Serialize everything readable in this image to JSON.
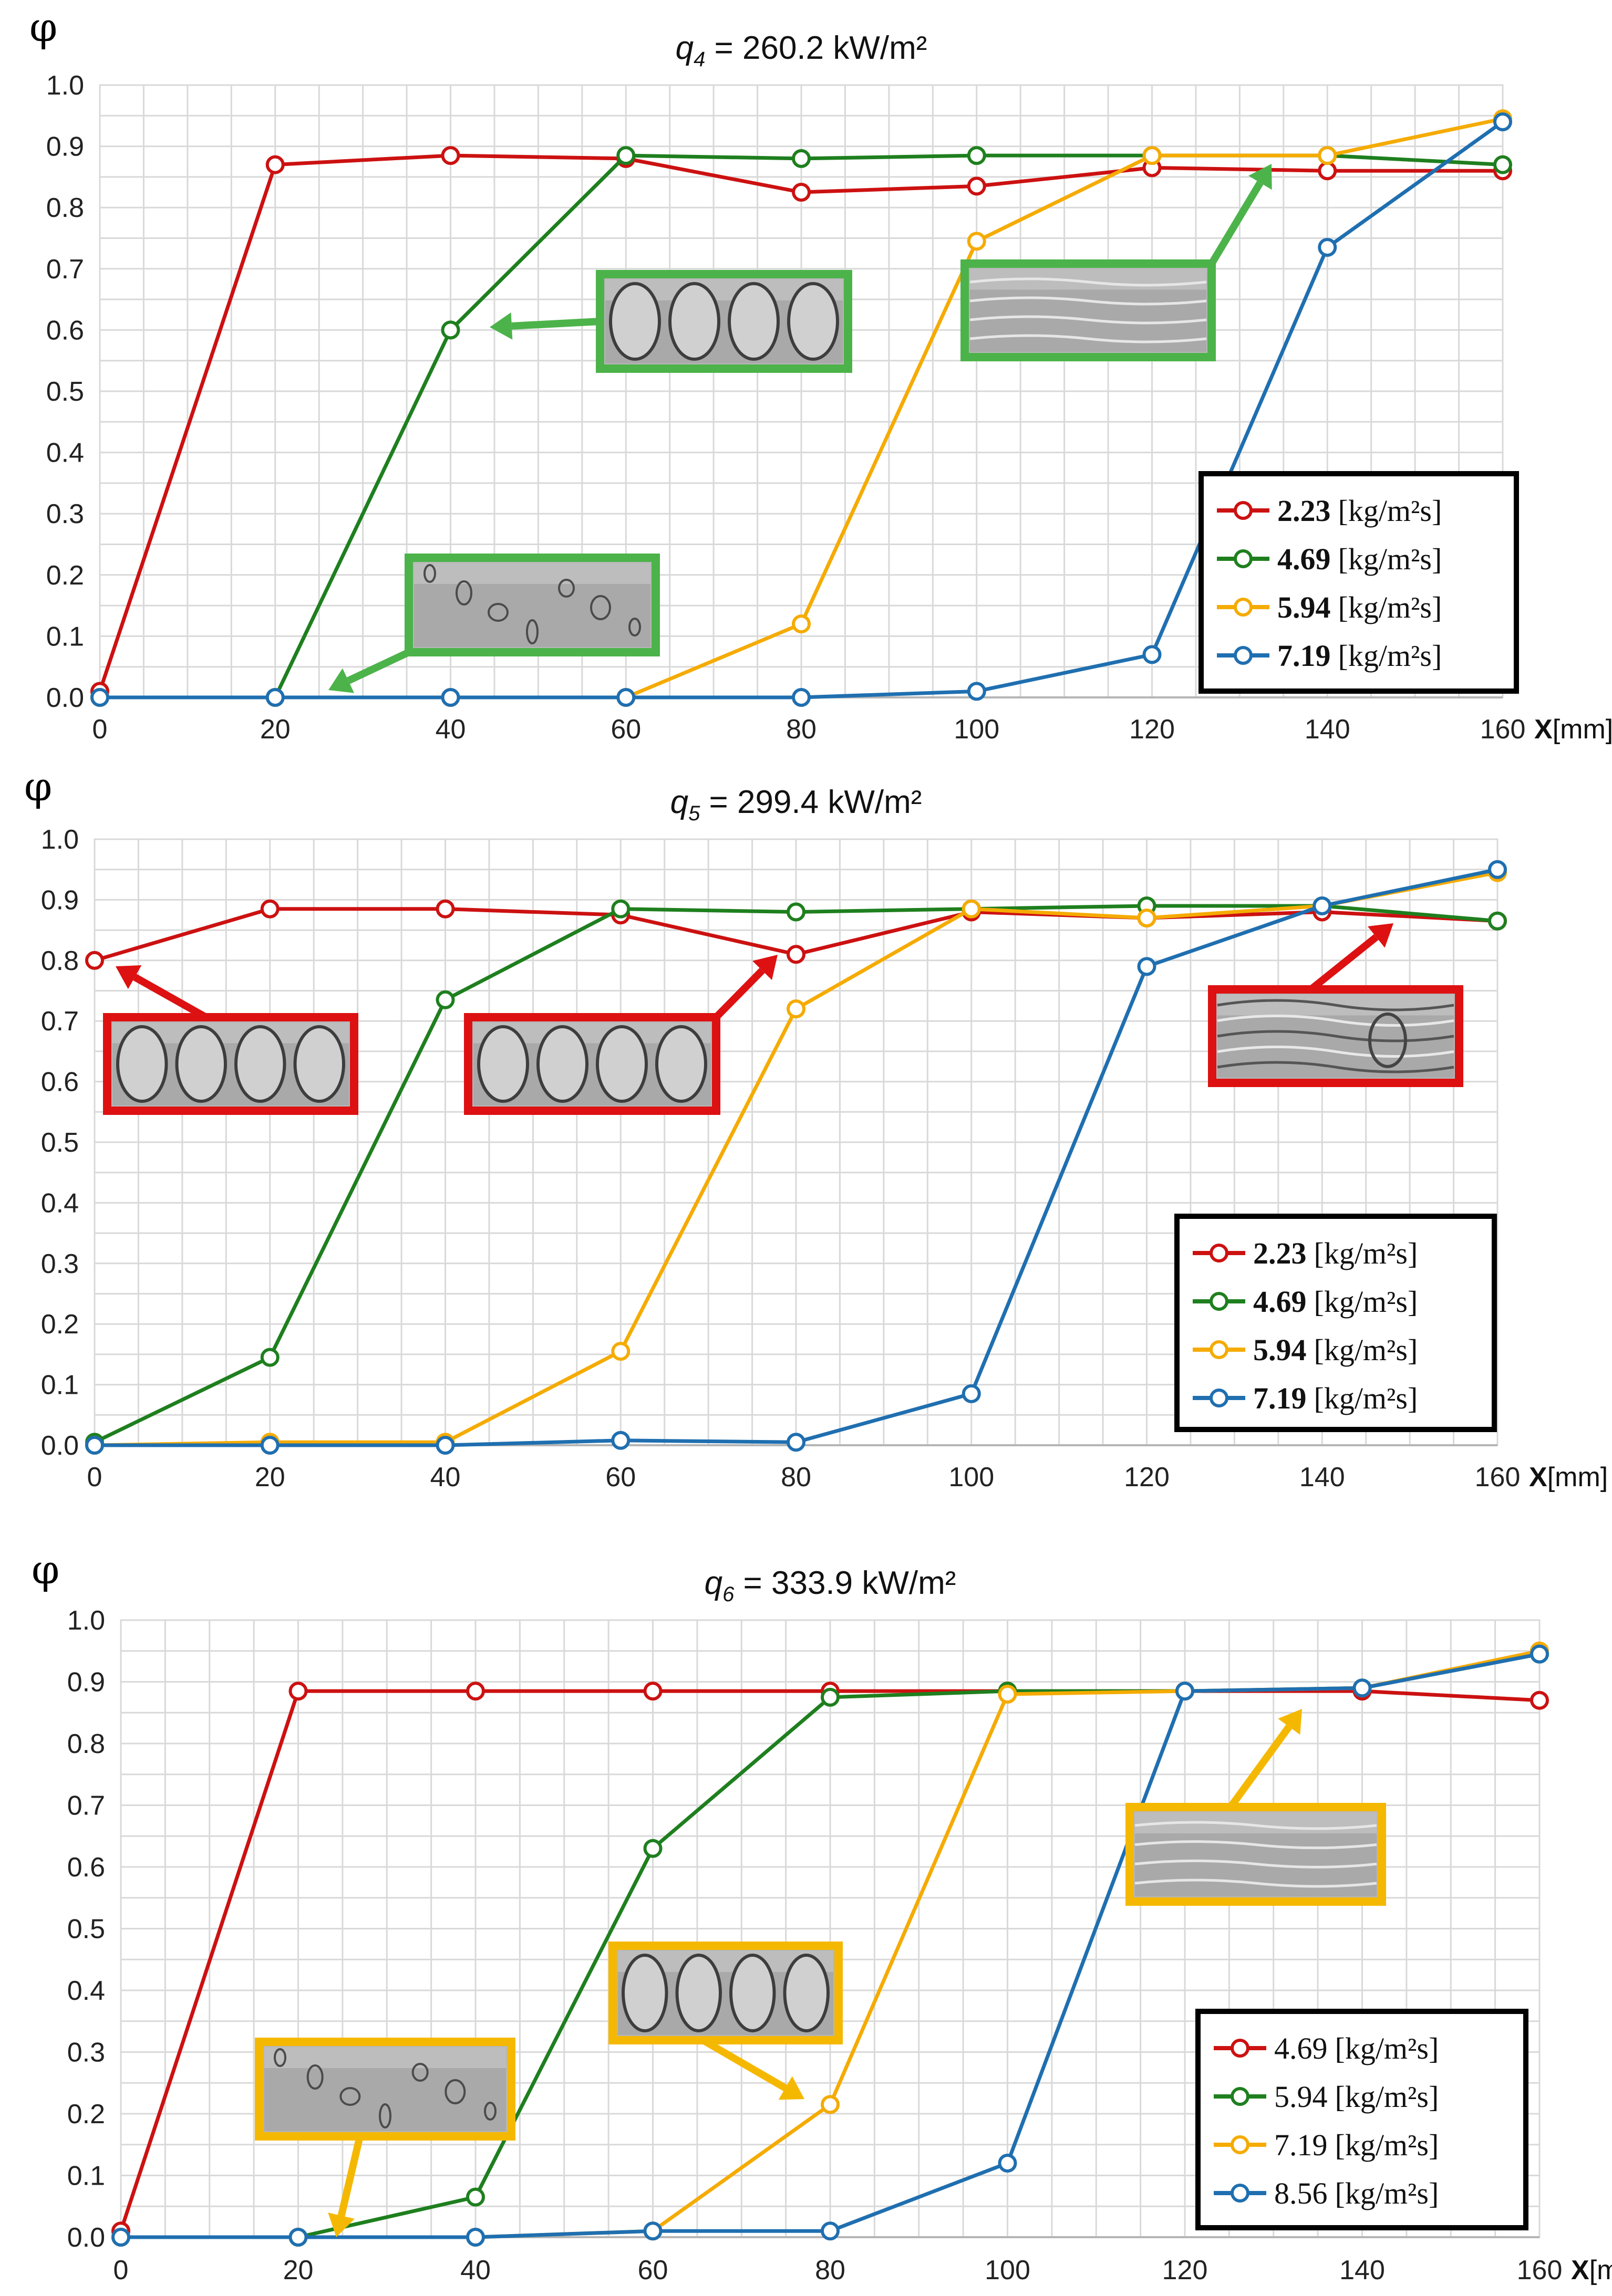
{
  "chart_data": [
    {
      "type": "line",
      "y_axis_symbol": "φ",
      "title": {
        "sym": "q",
        "sub": "4",
        "rest": " = 260.2 kW/m²"
      },
      "x_label_bold": "X",
      "x_label_unit": "[mm]",
      "x": [
        0,
        20,
        40,
        60,
        80,
        100,
        120,
        140,
        160
      ],
      "x_ticks": [
        "0",
        "20",
        "40",
        "60",
        "80",
        "100",
        "120",
        "140",
        "160"
      ],
      "y_ticks": [
        "0.0",
        "0.1",
        "0.2",
        "0.3",
        "0.4",
        "0.5",
        "0.6",
        "0.7",
        "0.8",
        "0.9",
        "1.0"
      ],
      "ylim": [
        0,
        1
      ],
      "xlim": [
        0,
        160
      ],
      "legend_position": "lower-right",
      "legend_bold_values": true,
      "series": [
        {
          "value": "2.23",
          "unit": "[kg/m²s]",
          "color": "#cc1111",
          "values": [
            0.01,
            0.87,
            0.885,
            0.88,
            0.825,
            0.835,
            0.865,
            0.86,
            0.86
          ]
        },
        {
          "value": "4.69",
          "unit": "[kg/m²s]",
          "color": "#1e7f1e",
          "values": [
            0.0,
            0.0,
            0.6,
            0.885,
            0.88,
            0.885,
            0.885,
            0.885,
            0.87
          ]
        },
        {
          "value": "5.94",
          "unit": "[kg/m²s]",
          "color": "#f5ab00",
          "values": [
            0.0,
            0.0,
            0.0,
            0.0,
            0.12,
            0.745,
            0.885,
            0.885,
            0.945
          ]
        },
        {
          "value": "7.19",
          "unit": "[kg/m²s]",
          "color": "#1f6fb0",
          "values": [
            0.0,
            0.0,
            0.0,
            0.0,
            0.0,
            0.01,
            0.07,
            0.735,
            0.94
          ]
        }
      ],
      "annotations": [
        {
          "photo": "bubbly-flow",
          "frame_color": "#4cb34a",
          "points_to": [
            20,
            0.0
          ]
        },
        {
          "photo": "slug-flow",
          "frame_color": "#4cb34a",
          "points_to": [
            40,
            0.6
          ]
        },
        {
          "photo": "annular-flow",
          "frame_color": "#4cb34a",
          "points_to": [
            140,
            0.885
          ]
        }
      ]
    },
    {
      "type": "line",
      "y_axis_symbol": "φ",
      "title": {
        "sym": "q",
        "sub": "5",
        "rest": " = 299.4 kW/m²"
      },
      "x_label_bold": "X",
      "x_label_unit": "[mm]",
      "x": [
        0,
        20,
        40,
        60,
        80,
        100,
        120,
        140,
        160
      ],
      "x_ticks": [
        "0",
        "20",
        "40",
        "60",
        "80",
        "100",
        "120",
        "140",
        "160"
      ],
      "y_ticks": [
        "0.0",
        "0.1",
        "0.2",
        "0.3",
        "0.4",
        "0.5",
        "0.6",
        "0.7",
        "0.8",
        "0.9",
        "1.0"
      ],
      "ylim": [
        0,
        1
      ],
      "xlim": [
        0,
        160
      ],
      "legend_position": "lower-right",
      "legend_bold_values": true,
      "series": [
        {
          "value": "2.23",
          "unit": "[kg/m²s]",
          "color": "#cc1111",
          "values": [
            0.8,
            0.885,
            0.885,
            0.875,
            0.81,
            0.88,
            0.87,
            0.88,
            0.865
          ]
        },
        {
          "value": "4.69",
          "unit": "[kg/m²s]",
          "color": "#1e7f1e",
          "values": [
            0.005,
            0.145,
            0.735,
            0.885,
            0.88,
            0.885,
            0.89,
            0.89,
            0.865
          ]
        },
        {
          "value": "5.94",
          "unit": "[kg/m²s]",
          "color": "#f5ab00",
          "values": [
            0.0,
            0.005,
            0.005,
            0.155,
            0.72,
            0.885,
            0.87,
            0.89,
            0.945
          ]
        },
        {
          "value": "7.19",
          "unit": "[kg/m²s]",
          "color": "#1f6fb0",
          "values": [
            0.0,
            0.0,
            0.0,
            0.008,
            0.005,
            0.085,
            0.79,
            0.89,
            0.95
          ]
        }
      ],
      "annotations": [
        {
          "photo": "slug-flow",
          "frame_color": "#dd1111",
          "points_to": [
            0,
            0.8
          ]
        },
        {
          "photo": "slug-flow",
          "frame_color": "#dd1111",
          "points_to": [
            80,
            0.81
          ]
        },
        {
          "photo": "churn-flow",
          "frame_color": "#dd1111",
          "points_to": [
            160,
            0.865
          ]
        }
      ]
    },
    {
      "type": "line",
      "y_axis_symbol": "φ",
      "title": {
        "sym": "q",
        "sub": "6",
        "rest": " = 333.9 kW/m²"
      },
      "x_label_bold": "X",
      "x_label_unit": "[mm]",
      "x": [
        0,
        20,
        40,
        60,
        80,
        100,
        120,
        140,
        160
      ],
      "x_ticks": [
        "0",
        "20",
        "40",
        "60",
        "80",
        "100",
        "120",
        "140",
        "160"
      ],
      "y_ticks": [
        "0.0",
        "0.1",
        "0.2",
        "0.3",
        "0.4",
        "0.5",
        "0.6",
        "0.7",
        "0.8",
        "0.9",
        "1.0"
      ],
      "ylim": [
        0,
        1
      ],
      "xlim": [
        0,
        160
      ],
      "legend_position": "lower-right",
      "legend_bold_values": false,
      "series": [
        {
          "value": "4.69",
          "unit": "[kg/m²s]",
          "color": "#cc1111",
          "values": [
            0.01,
            0.885,
            0.885,
            0.885,
            0.885,
            0.885,
            0.885,
            0.885,
            0.87
          ]
        },
        {
          "value": "5.94",
          "unit": "[kg/m²s]",
          "color": "#1e7f1e",
          "values": [
            0.0,
            0.0,
            0.065,
            0.63,
            0.875,
            0.885,
            0.885,
            0.89,
            0.945
          ]
        },
        {
          "value": "7.19",
          "unit": "[kg/m²s]",
          "color": "#f5ab00",
          "values": [
            0.0,
            0.0,
            0.0,
            0.01,
            0.215,
            0.88,
            0.885,
            0.89,
            0.95
          ]
        },
        {
          "value": "8.56",
          "unit": "[kg/m²s]",
          "color": "#1f6fb0",
          "values": [
            0.0,
            0.0,
            0.0,
            0.01,
            0.01,
            0.12,
            0.885,
            0.89,
            0.945
          ]
        }
      ],
      "annotations": [
        {
          "photo": "bubbly-flow",
          "frame_color": "#f5b800",
          "points_to": [
            20,
            0.0
          ]
        },
        {
          "photo": "slug-flow",
          "frame_color": "#f5b800",
          "points_to": [
            80,
            0.215
          ]
        },
        {
          "photo": "annular-flow",
          "frame_color": "#f5b800",
          "points_to": [
            140,
            0.89
          ]
        }
      ]
    }
  ]
}
